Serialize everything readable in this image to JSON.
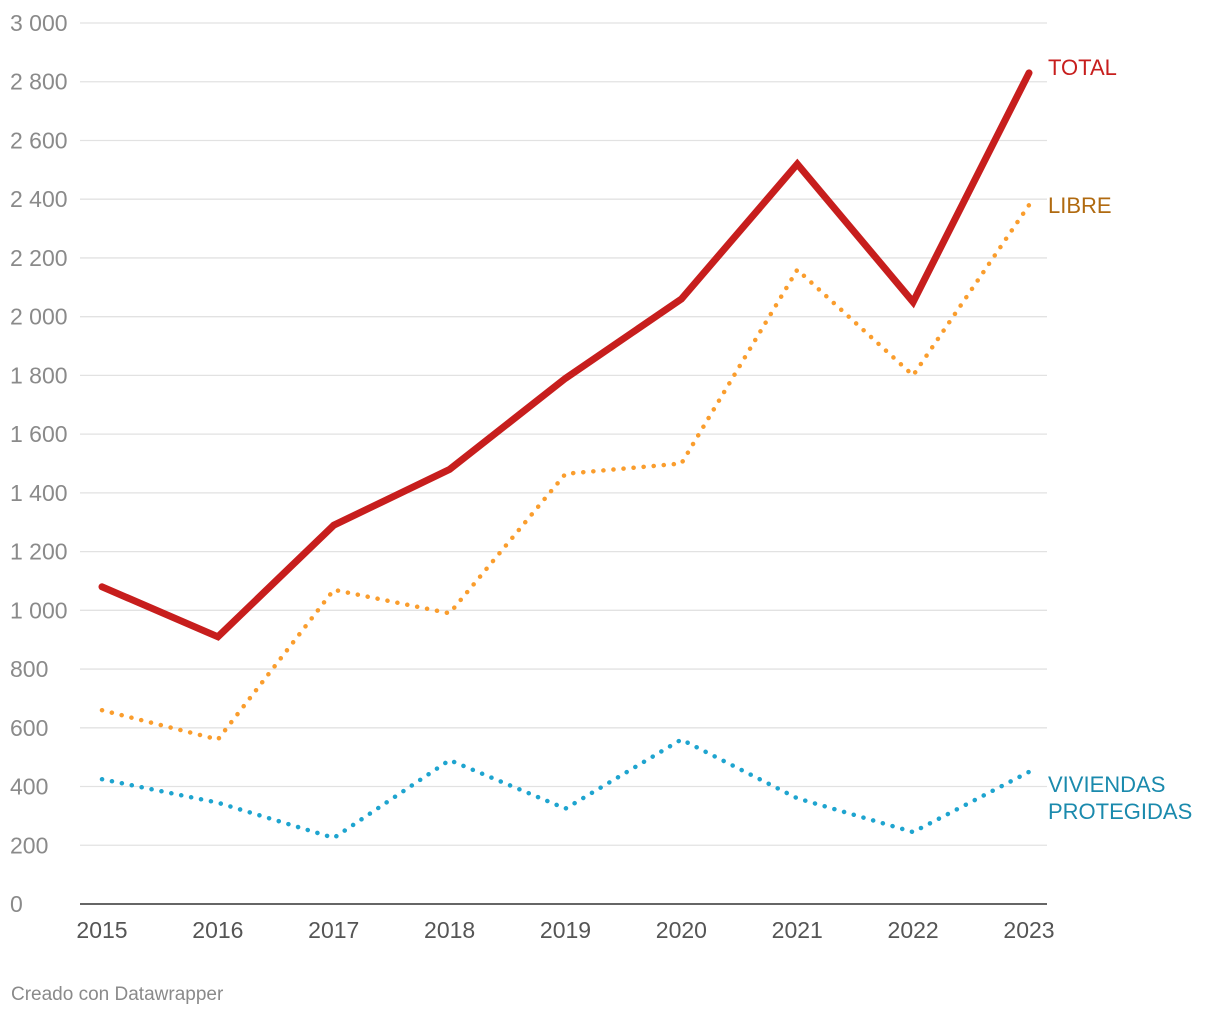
{
  "chart_data": {
    "type": "line",
    "title": "",
    "xlabel": "",
    "ylabel": "",
    "x": [
      "2015",
      "2016",
      "2017",
      "2018",
      "2019",
      "2020",
      "2021",
      "2022",
      "2023"
    ],
    "ylim": [
      0,
      3000
    ],
    "yticks": [
      "0",
      "200",
      "400",
      "600",
      "800",
      "1 000",
      "1 200",
      "1 400",
      "1 600",
      "1 800",
      "2 000",
      "2 200",
      "2 400",
      "2 600",
      "2 800",
      "3 000"
    ],
    "ytick_values": [
      0,
      200,
      400,
      600,
      800,
      1000,
      1200,
      1400,
      1600,
      1800,
      2000,
      2200,
      2400,
      2600,
      2800,
      3000
    ],
    "grid": true,
    "legend": "direct labels at right end of lines",
    "series": [
      {
        "name": "TOTAL",
        "label_lines": [
          "TOTAL"
        ],
        "color": "#c71e1d",
        "style": "solid",
        "values": [
          1080,
          910,
          1290,
          1480,
          1790,
          2060,
          2520,
          2050,
          2830
        ]
      },
      {
        "name": "LIBRE",
        "label_lines": [
          "LIBRE"
        ],
        "color": "#fa9d2d",
        "label_color": "#b06a10",
        "style": "dotted",
        "values": [
          660,
          560,
          1070,
          990,
          1465,
          1500,
          2160,
          1800,
          2380
        ]
      },
      {
        "name": "VIVIENDAS PROTEGIDAS",
        "label_lines": [
          "VIVIENDAS",
          "PROTEGIDAS"
        ],
        "color": "#1ea4cf",
        "label_color": "#1a8aad",
        "style": "dotted",
        "values": [
          425,
          345,
          225,
          490,
          325,
          560,
          360,
          245,
          450
        ]
      }
    ]
  },
  "footer": {
    "credit": "Creado con Datawrapper"
  }
}
